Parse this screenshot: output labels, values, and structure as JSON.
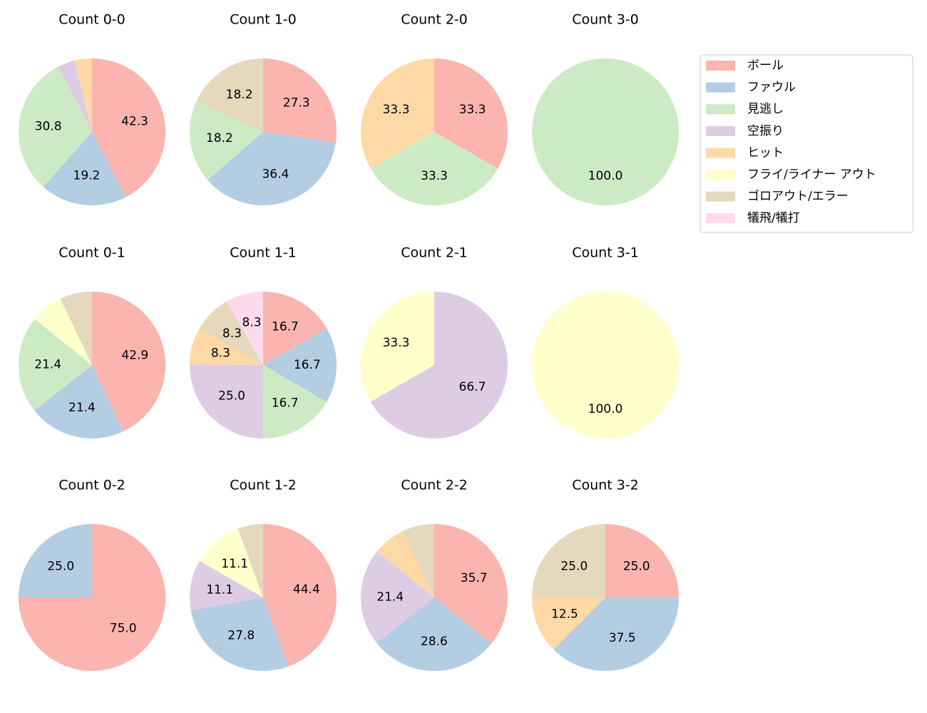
{
  "chart_data": [
    {
      "type": "pie",
      "title": "Count 0-0",
      "categories": [
        "ボール",
        "ファウル",
        "見逃し",
        "空振り",
        "ヒット"
      ],
      "values": [
        42.3,
        19.2,
        30.8,
        3.8,
        3.8
      ],
      "value_labels": [
        "42.3",
        "19.2",
        "30.8",
        null,
        null
      ]
    },
    {
      "type": "pie",
      "title": "Count 1-0",
      "categories": [
        "ボール",
        "ファウル",
        "見逃し",
        "ゴロアウト/エラー"
      ],
      "values": [
        27.3,
        36.4,
        18.2,
        18.2
      ],
      "value_labels": [
        "27.3",
        "36.4",
        "18.2",
        "18.2"
      ]
    },
    {
      "type": "pie",
      "title": "Count 2-0",
      "categories": [
        "ボール",
        "見逃し",
        "ヒット"
      ],
      "values": [
        33.3,
        33.3,
        33.3
      ],
      "value_labels": [
        "33.3",
        "33.3",
        "33.3"
      ]
    },
    {
      "type": "pie",
      "title": "Count 3-0",
      "categories": [
        "見逃し"
      ],
      "values": [
        100
      ],
      "value_labels": [
        "100.0"
      ]
    },
    {
      "type": "pie",
      "title": "Count 0-1",
      "categories": [
        "ボール",
        "ファウル",
        "見逃し",
        "フライ/ライナー アウト",
        "ゴロアウト/エラー"
      ],
      "values": [
        42.9,
        21.4,
        21.4,
        7.1,
        7.1
      ],
      "value_labels": [
        "42.9",
        "21.4",
        "21.4",
        null,
        null
      ]
    },
    {
      "type": "pie",
      "title": "Count 1-1",
      "categories": [
        "ボール",
        "ファウル",
        "見逃し",
        "空振り",
        "ヒット",
        "ゴロアウト/エラー",
        "犠飛/犠打"
      ],
      "values": [
        16.7,
        16.7,
        16.7,
        25,
        8.3,
        8.3,
        8.3
      ],
      "value_labels": [
        "16.7",
        "16.7",
        "16.7",
        "25.0",
        "8.3",
        "8.3",
        "8.3"
      ]
    },
    {
      "type": "pie",
      "title": "Count 2-1",
      "categories": [
        "空振り",
        "フライ/ライナー アウト"
      ],
      "values": [
        66.7,
        33.3
      ],
      "value_labels": [
        "66.7",
        "33.3"
      ]
    },
    {
      "type": "pie",
      "title": "Count 3-1",
      "categories": [
        "フライ/ライナー アウト"
      ],
      "values": [
        100
      ],
      "value_labels": [
        "100.0"
      ]
    },
    {
      "type": "pie",
      "title": "Count 0-2",
      "categories": [
        "ボール",
        "ファウル"
      ],
      "values": [
        75,
        25
      ],
      "value_labels": [
        "75.0",
        "25.0"
      ]
    },
    {
      "type": "pie",
      "title": "Count 1-2",
      "categories": [
        "ボール",
        "ファウル",
        "空振り",
        "フライ/ライナー アウト",
        "ゴロアウト/エラー"
      ],
      "values": [
        44.4,
        27.8,
        11.1,
        11.1,
        5.6
      ],
      "value_labels": [
        "44.4",
        "27.8",
        "11.1",
        "11.1",
        null
      ]
    },
    {
      "type": "pie",
      "title": "Count 2-2",
      "categories": [
        "ボール",
        "ファウル",
        "空振り",
        "ヒット",
        "ゴロアウト/エラー"
      ],
      "values": [
        35.7,
        28.6,
        21.4,
        7.1,
        7.1
      ],
      "value_labels": [
        "35.7",
        "28.6",
        "21.4",
        null,
        null
      ]
    },
    {
      "type": "pie",
      "title": "Count 3-2",
      "categories": [
        "ボール",
        "ファウル",
        "ヒット",
        "ゴロアウト/エラー"
      ],
      "values": [
        25,
        37.5,
        12.5,
        25
      ],
      "value_labels": [
        "25.0",
        "37.5",
        "12.5",
        "25.0"
      ]
    }
  ],
  "legend": {
    "position": "upper right",
    "labels": [
      "ボール",
      "ファウル",
      "見逃し",
      "空振り",
      "ヒット",
      "フライ/ライナー アウト",
      "ゴロアウト/エラー",
      "犠飛/犠打"
    ],
    "colors": [
      "#fbb4ae",
      "#b3cde3",
      "#ccebc5",
      "#decbe4",
      "#fed9a6",
      "#ffffcc",
      "#e5d8bd",
      "#fddaec"
    ]
  }
}
